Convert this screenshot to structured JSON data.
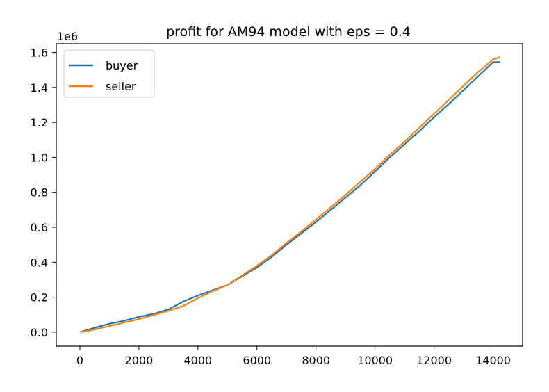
{
  "chart_data": {
    "type": "line",
    "title": "profit for AM94 model with eps = 0.4",
    "offset_label": "1e6",
    "xlabel": "",
    "ylabel": "",
    "xlim": [
      -800,
      15000
    ],
    "ylim": [
      -0.08,
      1.65
    ],
    "x_ticks": [
      0,
      2000,
      4000,
      6000,
      8000,
      10000,
      12000,
      14000
    ],
    "x_tick_labels": [
      "0",
      "2000",
      "4000",
      "6000",
      "8000",
      "10000",
      "12000",
      "14000"
    ],
    "y_ticks": [
      0.0,
      0.2,
      0.4,
      0.6,
      0.8,
      1.0,
      1.2,
      1.4,
      1.6
    ],
    "y_tick_labels": [
      "0.0",
      "0.2",
      "0.4",
      "0.6",
      "0.8",
      "1.0",
      "1.2",
      "1.4",
      "1.6"
    ],
    "grid": false,
    "legend_position": "top-left",
    "series": [
      {
        "name": "buyer",
        "color": "#1f77b4",
        "x": [
          0,
          500,
          1000,
          1500,
          2000,
          2500,
          3000,
          3500,
          4000,
          4500,
          5000,
          5500,
          6000,
          6500,
          7000,
          7500,
          8000,
          8500,
          9000,
          9500,
          10000,
          10500,
          11000,
          11500,
          12000,
          12500,
          13000,
          13500,
          14000,
          14250
        ],
        "y": [
          0.0,
          0.025,
          0.048,
          0.065,
          0.088,
          0.105,
          0.13,
          0.175,
          0.21,
          0.24,
          0.27,
          0.32,
          0.37,
          0.43,
          0.5,
          0.565,
          0.63,
          0.7,
          0.77,
          0.84,
          0.92,
          1.0,
          1.075,
          1.15,
          1.23,
          1.305,
          1.385,
          1.465,
          1.545,
          1.545
        ]
      },
      {
        "name": "seller",
        "color": "#ff7f0e",
        "x": [
          0,
          500,
          1000,
          1500,
          2000,
          2500,
          3000,
          3500,
          4000,
          4500,
          5000,
          5500,
          6000,
          6500,
          7000,
          7500,
          8000,
          8500,
          9000,
          9500,
          10000,
          10500,
          11000,
          11500,
          12000,
          12500,
          13000,
          13500,
          14000,
          14250
        ],
        "y": [
          0.0,
          0.015,
          0.035,
          0.055,
          0.075,
          0.098,
          0.122,
          0.15,
          0.195,
          0.235,
          0.27,
          0.325,
          0.38,
          0.44,
          0.51,
          0.575,
          0.645,
          0.715,
          0.785,
          0.86,
          0.935,
          1.015,
          1.09,
          1.17,
          1.25,
          1.33,
          1.41,
          1.49,
          1.56,
          1.575
        ]
      }
    ]
  }
}
